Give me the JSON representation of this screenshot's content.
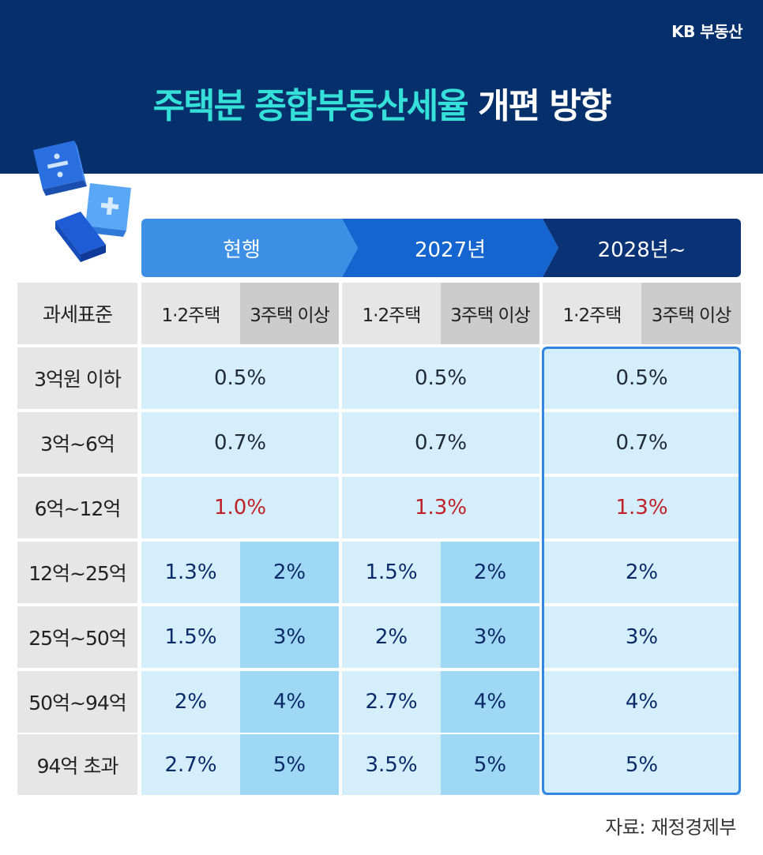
{
  "brand": "KB 부동산",
  "title": {
    "highlight": "주택분 종합부동산세율",
    "rest": "개편 방향"
  },
  "columns": [
    "현행",
    "2027년",
    "2028년~"
  ],
  "header_label": "과세표준",
  "sub_headers": [
    "1·2주택",
    "3주택 이상"
  ],
  "rows": [
    {
      "label": "3억원 이하",
      "current": "0.5%",
      "y2027": "0.5%",
      "y2028": "0.5%"
    },
    {
      "label": "3억~6억",
      "current": "0.7%",
      "y2027": "0.7%",
      "y2028": "0.7%"
    },
    {
      "label": "6억~12억",
      "current": "1.0%",
      "y2027": "1.3%",
      "y2028": "1.3%"
    },
    {
      "label": "12억~25억",
      "current_a": "1.3%",
      "current_b": "2%",
      "y2027_a": "1.5%",
      "y2027_b": "2%",
      "y2028": "2%"
    },
    {
      "label": "25억~50억",
      "current_a": "1.5%",
      "current_b": "3%",
      "y2027_a": "2%",
      "y2027_b": "3%",
      "y2028": "3%"
    },
    {
      "label": "50억~94억",
      "current_a": "2%",
      "current_b": "4%",
      "y2027_a": "2.7%",
      "y2027_b": "4%",
      "y2028": "4%"
    },
    {
      "label": "94억 초과",
      "current_a": "2.7%",
      "current_b": "5%",
      "y2027_a": "3.5%",
      "y2027_b": "5%",
      "y2028": "5%"
    }
  ],
  "highlight_color": "#c0202a",
  "source": "자료: 재정경제부",
  "icons": [
    "divide-cube-icon",
    "plus-cube-icon",
    "minus-cube-icon"
  ]
}
